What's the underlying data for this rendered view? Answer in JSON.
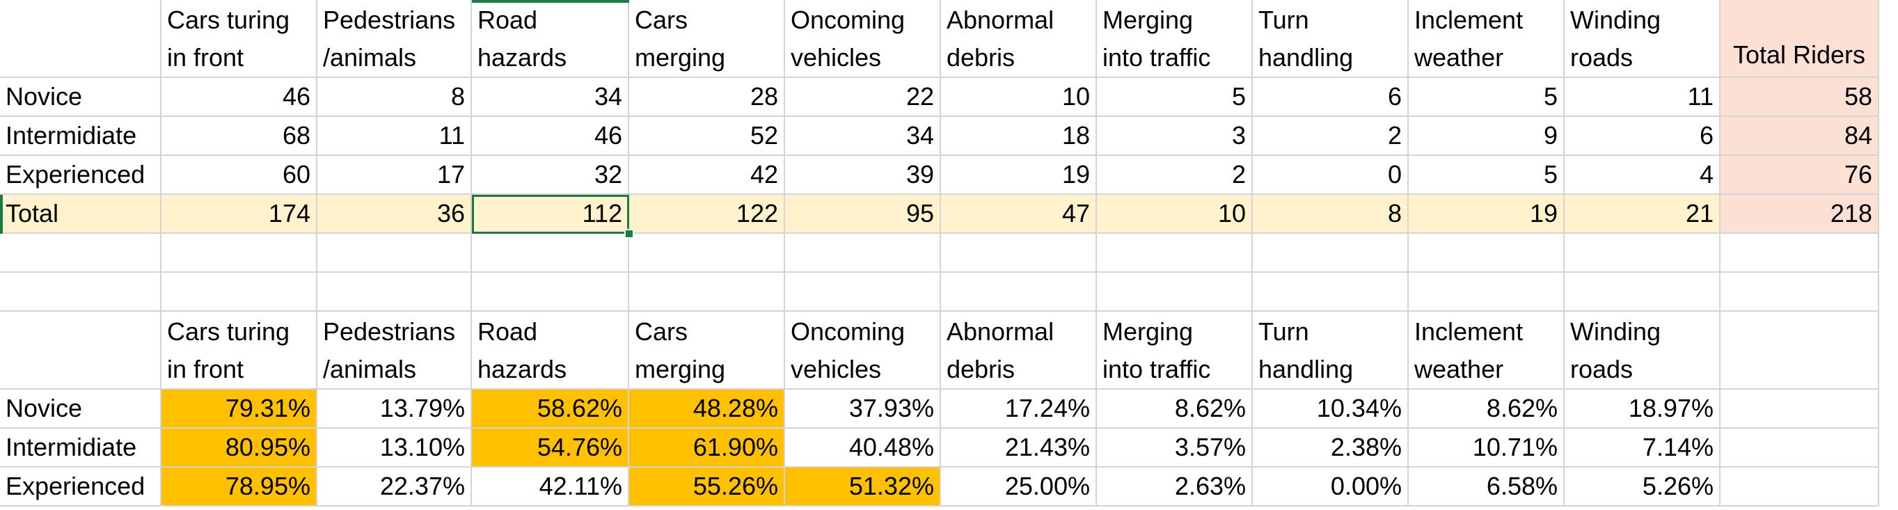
{
  "colors": {
    "total_row_fill": "#fff2cc",
    "total_riders_fill": "#fbe0d3",
    "highlight_fill": "#ffc000",
    "selection": "#1e7a45",
    "gridline": "#d4d4d4"
  },
  "table1": {
    "headers": [
      [
        "Cars turing",
        "in front"
      ],
      [
        "Pedestrians",
        "/animals"
      ],
      [
        "Road",
        "hazards"
      ],
      [
        "Cars",
        "merging"
      ],
      [
        "Oncoming",
        "vehicles"
      ],
      [
        "Abnormal",
        "debris"
      ],
      [
        "Merging",
        "into traffic"
      ],
      [
        "Turn",
        "handling"
      ],
      [
        "Inclement",
        "weather"
      ],
      [
        "Winding",
        "roads"
      ]
    ],
    "total_riders_header": "Total Riders",
    "rows": [
      {
        "label": "Novice",
        "values": [
          "46",
          "8",
          "34",
          "28",
          "22",
          "10",
          "5",
          "6",
          "5",
          "11"
        ],
        "total_riders": "58"
      },
      {
        "label": "Intermidiate",
        "values": [
          "68",
          "11",
          "46",
          "52",
          "34",
          "18",
          "3",
          "2",
          "9",
          "6"
        ],
        "total_riders": "84"
      },
      {
        "label": "Experienced",
        "values": [
          "60",
          "17",
          "32",
          "42",
          "39",
          "19",
          "2",
          "0",
          "5",
          "4"
        ],
        "total_riders": "76"
      },
      {
        "label": "Total",
        "values": [
          "174",
          "36",
          "112",
          "122",
          "95",
          "47",
          "10",
          "8",
          "19",
          "21"
        ],
        "total_riders": "218"
      }
    ]
  },
  "table2": {
    "headers": [
      [
        "Cars turing",
        "in front"
      ],
      [
        "Pedestrians",
        "/animals"
      ],
      [
        "Road",
        "hazards"
      ],
      [
        "Cars",
        "merging"
      ],
      [
        "Oncoming",
        "vehicles"
      ],
      [
        "Abnormal",
        "debris"
      ],
      [
        "Merging",
        "into traffic"
      ],
      [
        "Turn",
        "handling"
      ],
      [
        "Inclement",
        "weather"
      ],
      [
        "Winding",
        "roads"
      ]
    ],
    "rows": [
      {
        "label": "Novice",
        "values": [
          "79.31%",
          "13.79%",
          "58.62%",
          "48.28%",
          "37.93%",
          "17.24%",
          "8.62%",
          "10.34%",
          "8.62%",
          "18.97%"
        ],
        "highlight": [
          true,
          false,
          true,
          true,
          false,
          false,
          false,
          false,
          false,
          false
        ]
      },
      {
        "label": "Intermidiate",
        "values": [
          "80.95%",
          "13.10%",
          "54.76%",
          "61.90%",
          "40.48%",
          "21.43%",
          "3.57%",
          "2.38%",
          "10.71%",
          "7.14%"
        ],
        "highlight": [
          true,
          false,
          true,
          true,
          false,
          false,
          false,
          false,
          false,
          false
        ]
      },
      {
        "label": "Experienced",
        "values": [
          "78.95%",
          "22.37%",
          "42.11%",
          "55.26%",
          "51.32%",
          "25.00%",
          "2.63%",
          "0.00%",
          "6.58%",
          "5.26%"
        ],
        "highlight": [
          true,
          false,
          false,
          true,
          true,
          false,
          false,
          false,
          false,
          false
        ]
      }
    ]
  }
}
